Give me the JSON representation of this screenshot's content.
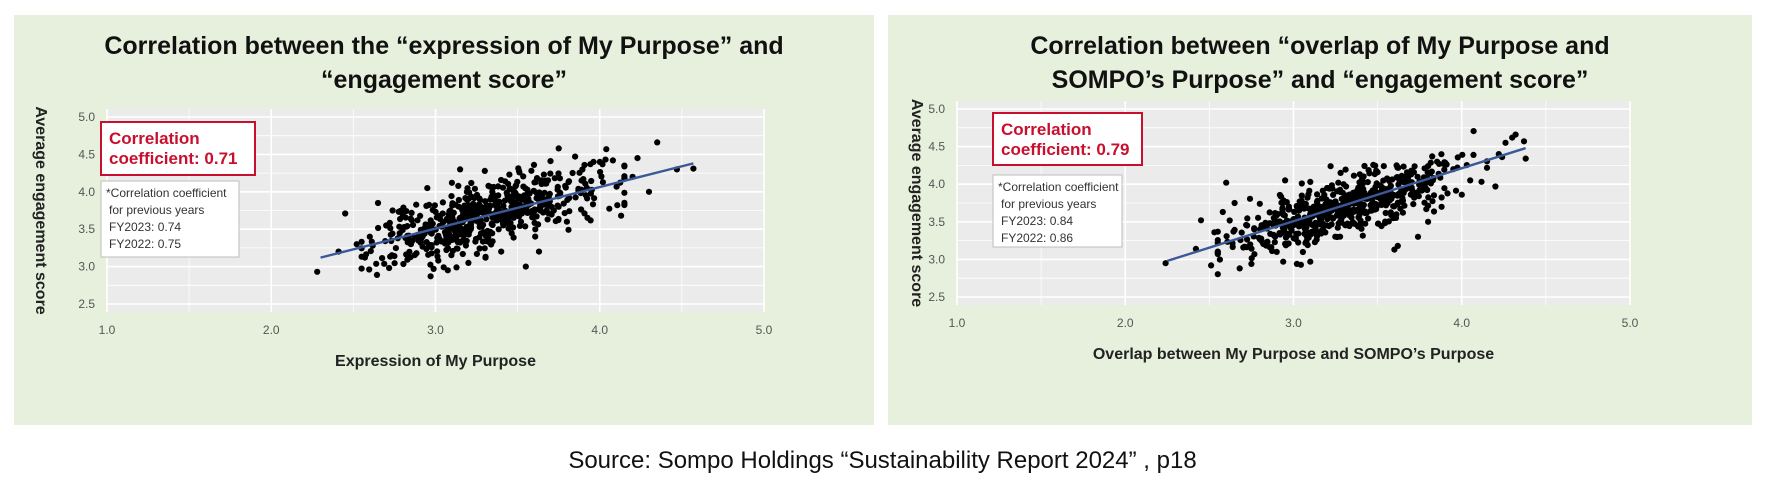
{
  "source": "Source: Sompo Holdings “Sustainability Report 2024” , p18",
  "colors": {
    "panel_bg": "#e6f0dc",
    "plot_bg": "#ebebeb",
    "grid": "#ffffff",
    "point": "#000000",
    "trend": "#3b5998",
    "accent_red": "#c8102e"
  },
  "chart_data": [
    {
      "type": "scatter",
      "title": [
        "Correlation between the “expression of My Purpose” and",
        "“engagement score”"
      ],
      "xlabel": "Expression of My Purpose",
      "ylabel": "Average engagement score",
      "xlim": [
        1.0,
        5.0
      ],
      "ylim": [
        2.5,
        5.0
      ],
      "x_ticks": [
        "1.0",
        "2.0",
        "3.0",
        "4.0",
        "5.0"
      ],
      "y_ticks": [
        "2.5",
        "3.0",
        "3.5",
        "4.0",
        "4.5",
        "5.0"
      ],
      "grid": true,
      "correlation_box": [
        "Correlation",
        "coefficient: 0.71"
      ],
      "note_box": [
        "*Correlation coefficient",
        "for previous years",
        "FY2023: 0.74",
        "FY2022: 0.75"
      ],
      "trend": {
        "x": [
          2.3,
          4.57
        ],
        "y": [
          3.12,
          4.38
        ]
      },
      "points": [
        [
          2.28,
          2.93
        ],
        [
          2.45,
          3.71
        ],
        [
          2.41,
          3.2
        ],
        [
          2.57,
          3.12
        ],
        [
          2.85,
          3.3
        ],
        [
          2.97,
          2.87
        ],
        [
          4.57,
          4.31
        ],
        [
          4.35,
          4.66
        ],
        [
          4.23,
          4.45
        ],
        [
          4.08,
          4.42
        ],
        [
          4.04,
          4.57
        ],
        [
          3.75,
          4.58
        ],
        [
          3.7,
          4.41
        ],
        [
          3.85,
          4.47
        ],
        [
          4.0,
          4.4
        ],
        [
          4.13,
          3.68
        ],
        [
          3.55,
          3.0
        ],
        [
          3.63,
          3.2
        ],
        [
          3.2,
          3.05
        ],
        [
          3.05,
          2.99
        ],
        [
          2.75,
          3.14
        ],
        [
          2.52,
          3.3
        ],
        [
          2.6,
          3.4
        ],
        [
          2.7,
          3.55
        ],
        [
          2.8,
          3.7
        ],
        [
          2.95,
          4.05
        ],
        [
          3.1,
          4.12
        ],
        [
          3.15,
          4.3
        ],
        [
          3.3,
          4.28
        ],
        [
          3.45,
          4.23
        ],
        [
          3.6,
          4.36
        ],
        [
          4.47,
          4.3
        ],
        [
          4.2,
          4.2
        ],
        [
          4.3,
          4.0
        ],
        [
          3.9,
          4.17
        ],
        [
          3.8,
          3.6
        ],
        [
          3.4,
          3.2
        ],
        [
          3.72,
          3.75
        ],
        [
          2.65,
          3.85
        ]
      ],
      "cloud": {
        "mean_x": 3.32,
        "sd_x": 0.34,
        "slope": 0.555,
        "intercept": 1.84,
        "noise": 0.21,
        "n": 560,
        "xmin": 2.55,
        "xmax": 4.15,
        "seed": 7
      }
    },
    {
      "type": "scatter",
      "title": [
        "Correlation between “overlap of My Purpose and",
        "SOMPO’s Purpose” and “engagement score”"
      ],
      "xlabel": "Overlap between My Purpose and SOMPO’s Purpose",
      "ylabel": "Average engagement score",
      "xlim": [
        1.0,
        5.0
      ],
      "ylim": [
        2.5,
        5.0
      ],
      "x_ticks": [
        "1.0",
        "2.0",
        "3.0",
        "4.0",
        "5.0"
      ],
      "y_ticks": [
        "2.5",
        "3.0",
        "3.5",
        "4.0",
        "4.5",
        "5.0"
      ],
      "grid": true,
      "correlation_box": [
        "Correlation",
        "coefficient: 0.79"
      ],
      "note_box": [
        "*Correlation coefficient",
        "for previous years",
        "FY2023: 0.84",
        "FY2022: 0.86"
      ],
      "trend": {
        "x": [
          2.25,
          4.38
        ],
        "y": [
          2.98,
          4.48
        ]
      },
      "points": [
        [
          2.24,
          2.95
        ],
        [
          2.42,
          3.14
        ],
        [
          2.45,
          3.52
        ],
        [
          2.53,
          3.36
        ],
        [
          2.51,
          2.92
        ],
        [
          2.68,
          2.88
        ],
        [
          2.75,
          2.94
        ],
        [
          3.02,
          2.94
        ],
        [
          3.1,
          2.97
        ],
        [
          2.9,
          3.1
        ],
        [
          2.58,
          3.63
        ],
        [
          2.65,
          3.75
        ],
        [
          2.8,
          3.74
        ],
        [
          2.6,
          4.02
        ],
        [
          2.95,
          4.05
        ],
        [
          3.1,
          4.03
        ],
        [
          3.2,
          3.95
        ],
        [
          3.28,
          4.15
        ],
        [
          3.5,
          4.16
        ],
        [
          3.55,
          3.72
        ],
        [
          3.6,
          3.13
        ],
        [
          3.62,
          3.18
        ],
        [
          3.74,
          3.3
        ],
        [
          3.8,
          3.5
        ],
        [
          3.88,
          3.7
        ],
        [
          4.0,
          3.86
        ],
        [
          4.05,
          4.05
        ],
        [
          4.2,
          3.97
        ],
        [
          4.22,
          4.4
        ],
        [
          4.3,
          4.62
        ],
        [
          4.32,
          4.66
        ],
        [
          4.26,
          4.55
        ],
        [
          4.24,
          4.36
        ],
        [
          4.37,
          4.57
        ],
        [
          4.38,
          4.34
        ],
        [
          4.07,
          4.39
        ],
        [
          3.95,
          4.2
        ],
        [
          3.7,
          4.18
        ],
        [
          3.15,
          3.35
        ]
      ],
      "cloud": {
        "mean_x": 3.32,
        "sd_x": 0.34,
        "slope": 0.69,
        "intercept": 1.42,
        "noise": 0.18,
        "n": 560,
        "xmin": 2.55,
        "xmax": 4.15,
        "seed": 13
      }
    }
  ]
}
